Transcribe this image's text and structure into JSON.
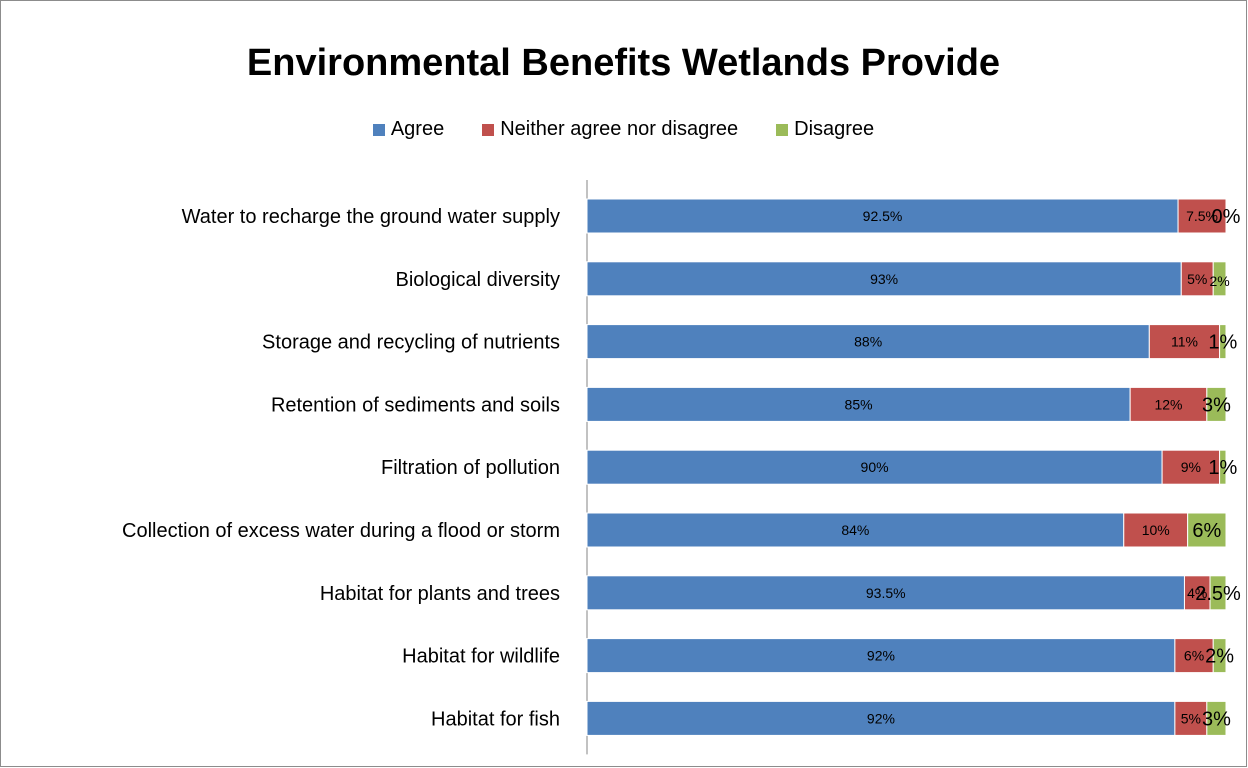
{
  "chart_data": {
    "type": "bar",
    "orientation": "horizontal",
    "stacked": true,
    "title": "Environmental Benefits Wetlands Provide",
    "xlabel": "",
    "ylabel": "",
    "xlim": [
      0,
      100
    ],
    "grid": false,
    "legend_position": "top",
    "categories": [
      "Water to recharge the ground water supply",
      "Biological diversity",
      "Storage and recycling of nutrients",
      "Retention of sediments and soils",
      "Filtration of pollution",
      "Collection of excess water during a flood or storm",
      "Habitat for plants and trees",
      "Habitat for wildlife",
      "Habitat for fish"
    ],
    "series": [
      {
        "name": "Agree",
        "color": "#4f81bd",
        "values": [
          92.5,
          93,
          88,
          85,
          90,
          84,
          93.5,
          92,
          92
        ],
        "labels": [
          "92.5%",
          "93%",
          "88%",
          "85%",
          "90%",
          "84%",
          "93.5%",
          "92%",
          "92%"
        ]
      },
      {
        "name": "Neither agree nor disagree",
        "color": "#c0504d",
        "values": [
          7.5,
          5,
          11,
          12,
          9,
          10,
          4,
          6,
          5
        ],
        "labels": [
          "7.5%",
          "5%",
          "11%",
          "12%",
          "9%",
          "10%",
          "4%",
          "6%",
          "5%"
        ]
      },
      {
        "name": "Disagree",
        "color": "#9bbb59",
        "values": [
          0,
          2,
          1,
          3,
          1,
          6,
          2.5,
          2,
          3
        ],
        "labels": [
          "0%",
          "2%",
          "1%",
          "3%",
          "1%",
          "6%",
          "2.5%",
          "2%",
          "3%"
        ]
      }
    ]
  }
}
